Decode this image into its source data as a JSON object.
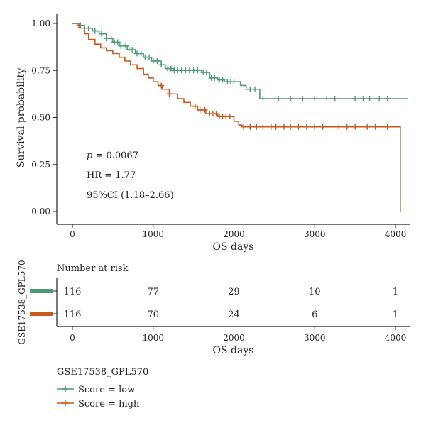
{
  "chart_data": {
    "type": "line",
    "subtype": "kaplan-meier",
    "ylabel": "Survival probability",
    "xlabel": "OS days",
    "xlim": [
      0,
      4150
    ],
    "ylim": [
      0,
      1.0
    ],
    "x_ticks": [
      "0",
      "1000",
      "2000",
      "3000",
      "4000"
    ],
    "y_ticks": [
      "0.00",
      "0.25",
      "0.50",
      "0.75",
      "1.00"
    ],
    "stats": {
      "p_symbol": "p",
      "p_value": " = 0.0067",
      "hr": "HR = 1.77",
      "ci": "95%CI (1.18–2.66)"
    },
    "series": [
      {
        "name": "Score = low",
        "color": "#4e9a72",
        "steps": [
          [
            0,
            1.0
          ],
          [
            60,
            0.99
          ],
          [
            150,
            0.975
          ],
          [
            250,
            0.96
          ],
          [
            330,
            0.945
          ],
          [
            420,
            0.92
          ],
          [
            500,
            0.9
          ],
          [
            580,
            0.88
          ],
          [
            680,
            0.86
          ],
          [
            780,
            0.84
          ],
          [
            880,
            0.82
          ],
          [
            980,
            0.8
          ],
          [
            1100,
            0.78
          ],
          [
            1150,
            0.76
          ],
          [
            1250,
            0.75
          ],
          [
            1600,
            0.74
          ],
          [
            1700,
            0.71
          ],
          [
            1800,
            0.7
          ],
          [
            1880,
            0.69
          ],
          [
            2080,
            0.67
          ],
          [
            2150,
            0.65
          ],
          [
            2320,
            0.6
          ],
          [
            4150,
            0.6
          ]
        ],
        "censor_x": [
          100,
          200,
          280,
          360,
          420,
          480,
          520,
          560,
          600,
          660,
          700,
          740,
          800,
          850,
          900,
          950,
          1000,
          1050,
          1100,
          1180,
          1220,
          1260,
          1300,
          1350,
          1400,
          1450,
          1500,
          1550,
          1620,
          1660,
          1720,
          1760,
          1820,
          1860,
          1920,
          1960,
          2000,
          2200,
          2260,
          2360,
          2550,
          2700,
          2850,
          3000,
          3150,
          3250,
          3500,
          3600,
          3680,
          3800,
          3900
        ]
      },
      {
        "name": "Score = high",
        "color": "#c85a1e",
        "steps": [
          [
            0,
            1.0
          ],
          [
            80,
            0.975
          ],
          [
            150,
            0.945
          ],
          [
            200,
            0.915
          ],
          [
            280,
            0.89
          ],
          [
            350,
            0.87
          ],
          [
            420,
            0.855
          ],
          [
            500,
            0.84
          ],
          [
            580,
            0.82
          ],
          [
            650,
            0.8
          ],
          [
            720,
            0.78
          ],
          [
            800,
            0.76
          ],
          [
            880,
            0.73
          ],
          [
            940,
            0.71
          ],
          [
            1000,
            0.69
          ],
          [
            1060,
            0.67
          ],
          [
            1110,
            0.65
          ],
          [
            1200,
            0.625
          ],
          [
            1300,
            0.6
          ],
          [
            1380,
            0.58
          ],
          [
            1460,
            0.56
          ],
          [
            1550,
            0.54
          ],
          [
            1650,
            0.52
          ],
          [
            1800,
            0.505
          ],
          [
            2000,
            0.48
          ],
          [
            2060,
            0.46
          ],
          [
            2100,
            0.45
          ],
          [
            4060,
            0.45
          ],
          [
            4060,
            0.0
          ]
        ],
        "censor_x": [
          1100,
          1200,
          1520,
          1580,
          1640,
          1700,
          1740,
          1780,
          1820,
          1860,
          1900,
          1950,
          2120,
          2200,
          2280,
          2360,
          2460,
          2520,
          2620,
          2700,
          2800,
          2900,
          3000,
          3100,
          3300,
          3400,
          3500,
          3650,
          3750,
          3900
        ]
      }
    ],
    "risk_table": {
      "title": "Number at risk",
      "strata_label": "GSE17538_GPL570",
      "x_ticks": [
        "0",
        "1000",
        "2000",
        "3000",
        "4000"
      ],
      "xlabel": "OS days",
      "rows": [
        {
          "color": "#4e9a72",
          "counts": [
            "116",
            "77",
            "29",
            "10",
            "1"
          ]
        },
        {
          "color": "#c85a1e",
          "counts": [
            "116",
            "70",
            "24",
            "6",
            "1"
          ]
        }
      ]
    },
    "legend": {
      "title": "GSE17538_GPL570",
      "items": [
        "Score = low",
        "Score = high"
      ]
    }
  }
}
